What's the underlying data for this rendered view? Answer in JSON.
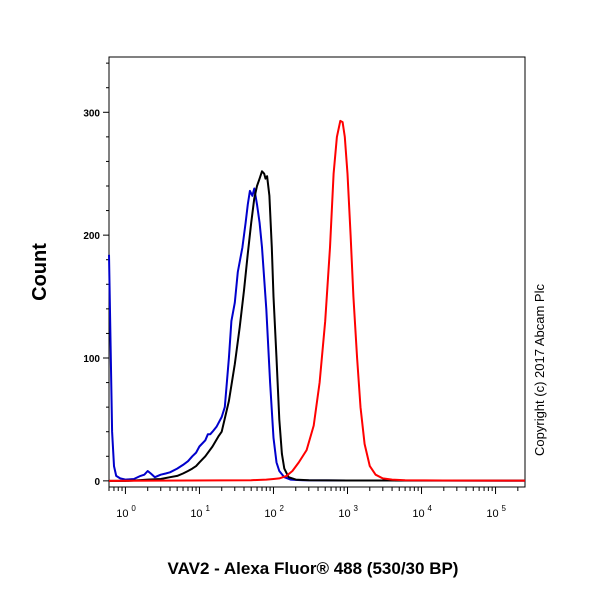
{
  "chart_data": {
    "type": "line",
    "title": "",
    "xlabel": "VAV2 - Alexa Fluor® 488 (530/30 BP)",
    "ylabel": "Count",
    "x_scale": "log",
    "xlim": [
      0.6,
      250000
    ],
    "ylim": [
      -5,
      345
    ],
    "x_ticks": [
      {
        "value": 1,
        "base": "10",
        "exp": "0"
      },
      {
        "value": 10,
        "base": "10",
        "exp": "1"
      },
      {
        "value": 100,
        "base": "10",
        "exp": "2"
      },
      {
        "value": 1000,
        "base": "10",
        "exp": "3"
      },
      {
        "value": 10000,
        "base": "10",
        "exp": "4"
      },
      {
        "value": 100000,
        "base": "10",
        "exp": "5"
      }
    ],
    "y_ticks": [
      {
        "value": 0,
        "label": "0"
      },
      {
        "value": 100,
        "label": "100"
      },
      {
        "value": 200,
        "label": "200"
      },
      {
        "value": 300,
        "label": "300"
      }
    ],
    "grid": false,
    "legend": "none",
    "annotation": "Copyright (c) 2017 Abcam Plc",
    "series": [
      {
        "color": "#0000cc",
        "points": [
          [
            0.6,
            184
          ],
          [
            0.63,
            110
          ],
          [
            0.66,
            40
          ],
          [
            0.7,
            12
          ],
          [
            0.75,
            4
          ],
          [
            0.85,
            2
          ],
          [
            1.0,
            1
          ],
          [
            1.3,
            1.5
          ],
          [
            1.6,
            4
          ],
          [
            1.8,
            5
          ],
          [
            2.0,
            8
          ],
          [
            2.2,
            6
          ],
          [
            2.5,
            3
          ],
          [
            3.0,
            5
          ],
          [
            3.5,
            6
          ],
          [
            4,
            7
          ],
          [
            5,
            10
          ],
          [
            6,
            13
          ],
          [
            7,
            16
          ],
          [
            8,
            20
          ],
          [
            9,
            23
          ],
          [
            10,
            28
          ],
          [
            12,
            33
          ],
          [
            13,
            38
          ],
          [
            14,
            38
          ],
          [
            15,
            40
          ],
          [
            17,
            44
          ],
          [
            20,
            52
          ],
          [
            22,
            60
          ],
          [
            25,
            100
          ],
          [
            27,
            130
          ],
          [
            30,
            145
          ],
          [
            33,
            170
          ],
          [
            38,
            190
          ],
          [
            42,
            210
          ],
          [
            45,
            225
          ],
          [
            48,
            236
          ],
          [
            52,
            232
          ],
          [
            55,
            238
          ],
          [
            60,
            225
          ],
          [
            65,
            210
          ],
          [
            70,
            190
          ],
          [
            80,
            140
          ],
          [
            90,
            80
          ],
          [
            100,
            35
          ],
          [
            110,
            15
          ],
          [
            120,
            8
          ],
          [
            140,
            3
          ],
          [
            170,
            1
          ],
          [
            250,
            0.5
          ],
          [
            1000,
            0.3
          ],
          [
            250000,
            0.2
          ]
        ]
      },
      {
        "color": "#000000",
        "points": [
          [
            0.6,
            0
          ],
          [
            1.0,
            0
          ],
          [
            1.5,
            0.5
          ],
          [
            2,
            1
          ],
          [
            3,
            1.5
          ],
          [
            4,
            3
          ],
          [
            5,
            4
          ],
          [
            6,
            6
          ],
          [
            7,
            8
          ],
          [
            8,
            10
          ],
          [
            9,
            12
          ],
          [
            10,
            15
          ],
          [
            12,
            20
          ],
          [
            15,
            28
          ],
          [
            18,
            36
          ],
          [
            20,
            40
          ],
          [
            25,
            65
          ],
          [
            30,
            95
          ],
          [
            35,
            125
          ],
          [
            40,
            155
          ],
          [
            45,
            185
          ],
          [
            50,
            210
          ],
          [
            55,
            230
          ],
          [
            60,
            240
          ],
          [
            65,
            246
          ],
          [
            70,
            252
          ],
          [
            75,
            250
          ],
          [
            78,
            246
          ],
          [
            82,
            248
          ],
          [
            88,
            232
          ],
          [
            95,
            190
          ],
          [
            100,
            150
          ],
          [
            110,
            100
          ],
          [
            120,
            50
          ],
          [
            130,
            22
          ],
          [
            140,
            10
          ],
          [
            160,
            3
          ],
          [
            200,
            1
          ],
          [
            300,
            0.5
          ],
          [
            1000,
            0.3
          ],
          [
            250000,
            0.2
          ]
        ]
      },
      {
        "color": "#ff0000",
        "points": [
          [
            0.6,
            0
          ],
          [
            50,
            0.5
          ],
          [
            80,
            1
          ],
          [
            100,
            1.5
          ],
          [
            120,
            2
          ],
          [
            150,
            4
          ],
          [
            180,
            8
          ],
          [
            220,
            15
          ],
          [
            280,
            25
          ],
          [
            350,
            45
          ],
          [
            420,
            80
          ],
          [
            500,
            130
          ],
          [
            580,
            190
          ],
          [
            650,
            250
          ],
          [
            720,
            280
          ],
          [
            800,
            293
          ],
          [
            860,
            292
          ],
          [
            920,
            280
          ],
          [
            1000,
            250
          ],
          [
            1100,
            200
          ],
          [
            1200,
            150
          ],
          [
            1350,
            100
          ],
          [
            1500,
            60
          ],
          [
            1700,
            30
          ],
          [
            2000,
            12
          ],
          [
            2400,
            5
          ],
          [
            3000,
            2
          ],
          [
            4000,
            1
          ],
          [
            6000,
            0.5
          ],
          [
            20000,
            0.3
          ],
          [
            250000,
            0.2
          ]
        ]
      }
    ]
  }
}
